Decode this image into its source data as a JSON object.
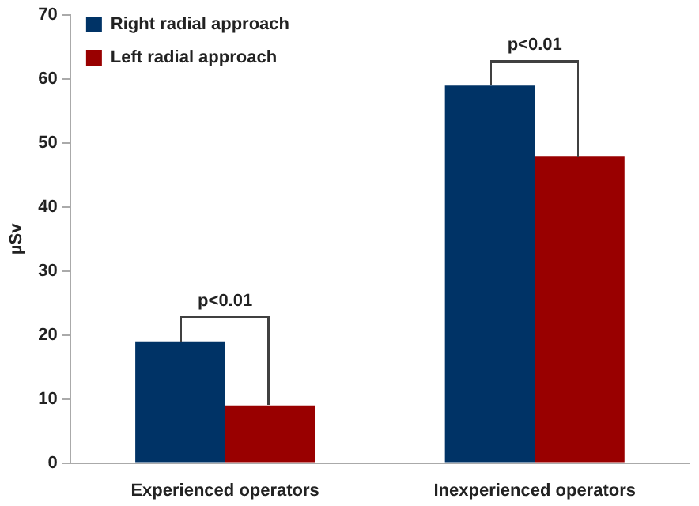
{
  "chart_data": {
    "type": "bar",
    "ylabel": "µSv",
    "categories": [
      "Experienced operators",
      "Inexperienced operators"
    ],
    "series": [
      {
        "name": "Right radial approach",
        "color": "#003366",
        "values": [
          19,
          59
        ]
      },
      {
        "name": "Left radial approach",
        "color": "#990000",
        "values": [
          9,
          48
        ]
      }
    ],
    "ylim": [
      0,
      70
    ],
    "yticks": [
      0,
      10,
      20,
      30,
      40,
      50,
      60,
      70
    ],
    "grid": false,
    "legend": "top left",
    "annotations": [
      "p<0.01",
      "p<0.01"
    ]
  }
}
